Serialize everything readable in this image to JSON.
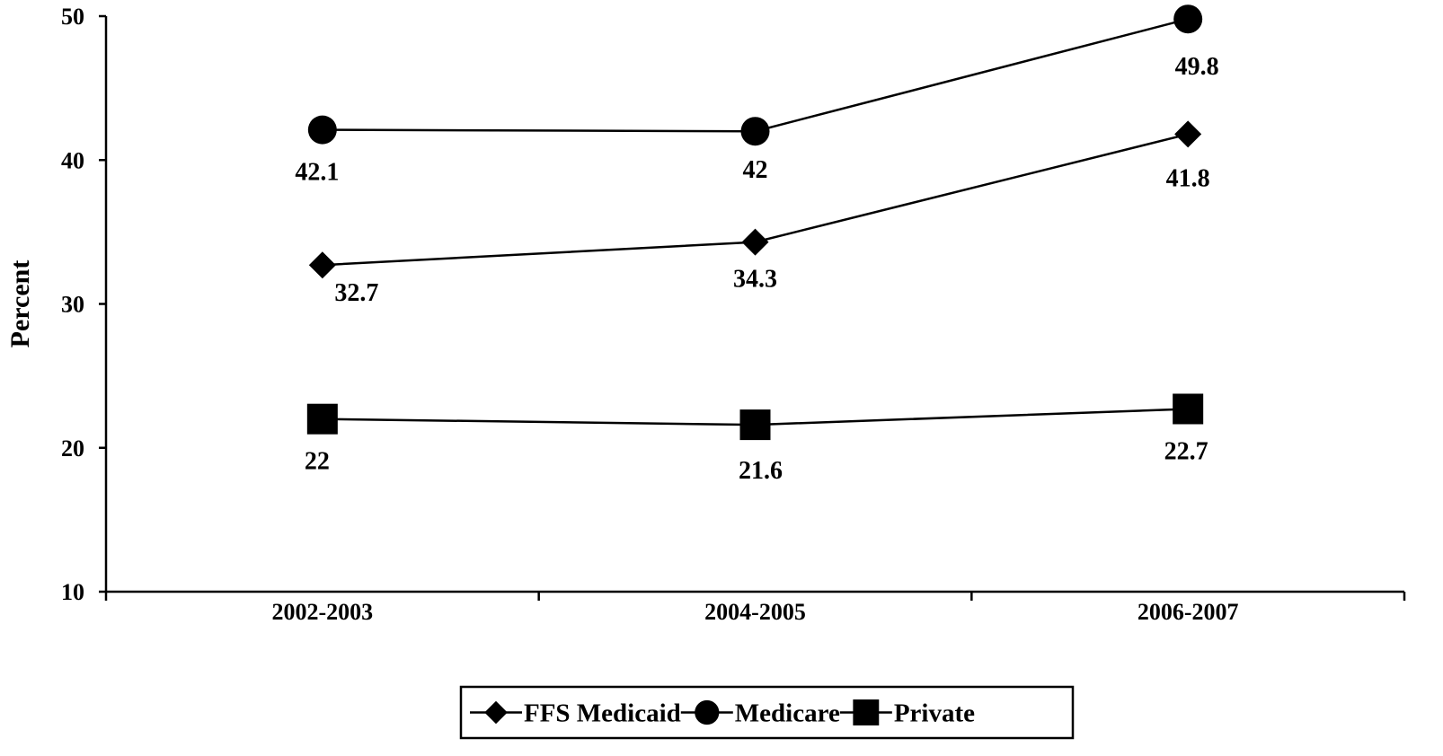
{
  "chart_data": {
    "type": "line",
    "title": "",
    "xlabel": "",
    "ylabel": "Percent",
    "categories": [
      "2002-2003",
      "2004-2005",
      "2006-2007"
    ],
    "ylim": [
      10,
      50
    ],
    "yticks": [
      "10",
      "20",
      "30",
      "40",
      "50"
    ],
    "grid": false,
    "legend_position": "bottom",
    "series": [
      {
        "name": "FFS Medicaid",
        "marker": "diamond",
        "values": [
          32.7,
          34.3,
          41.8
        ],
        "labels": [
          "32.7",
          "34.3",
          "41.8"
        ],
        "color": "#000000"
      },
      {
        "name": "Medicare",
        "marker": "circle",
        "values": [
          42.1,
          42,
          49.8
        ],
        "labels": [
          "42.1",
          "42",
          "49.8"
        ],
        "color": "#000000"
      },
      {
        "name": "Private",
        "marker": "square",
        "values": [
          22,
          21.6,
          22.7
        ],
        "labels": [
          "22",
          "21.6",
          "22.7"
        ],
        "color": "#000000"
      }
    ]
  }
}
